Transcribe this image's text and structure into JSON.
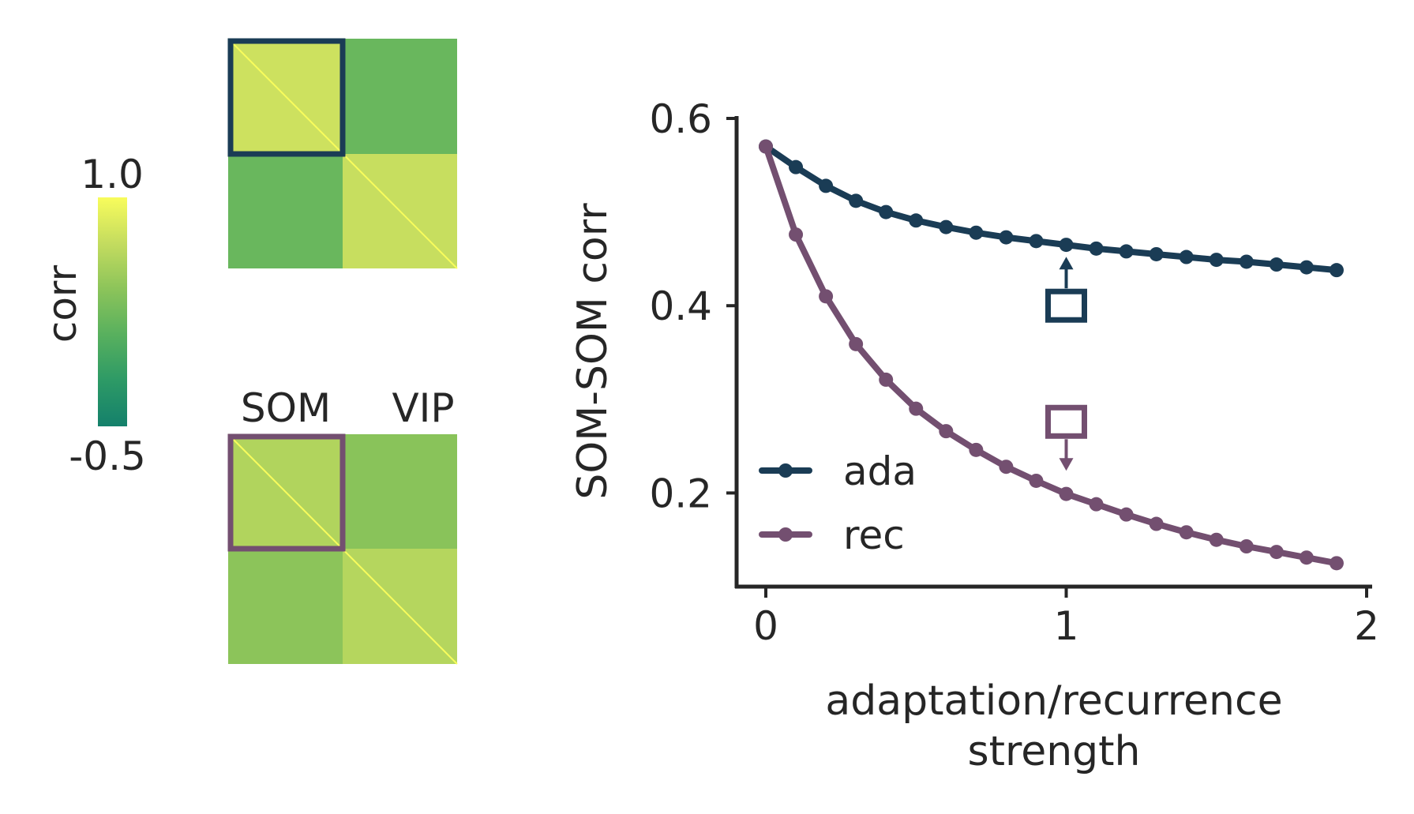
{
  "colors": {
    "ada": "#1a3c55",
    "rec": "#734f70",
    "text": "#262626",
    "cmap": [
      "#14806b",
      "#2d9a66",
      "#58b05e",
      "#8cc45a",
      "#c4dc5f",
      "#f8fc5c"
    ]
  },
  "colorbar": {
    "label": "corr",
    "max_label": "1.0",
    "min_label": "-0.5",
    "range": [
      -0.5,
      1.0
    ]
  },
  "matrices": {
    "column_labels": [
      "SOM",
      "VIP"
    ],
    "top": {
      "highlight": "SOM-SOM block",
      "highlight_color": "#1a3c55",
      "blocks": {
        "som_som": 0.75,
        "som_vip": 0.2,
        "vip_som": 0.2,
        "vip_vip": 0.72
      }
    },
    "bottom": {
      "highlight": "SOM-SOM block",
      "highlight_color": "#734f70",
      "blocks": {
        "som_som": 0.6,
        "som_vip": 0.38,
        "vip_som": 0.4,
        "vip_vip": 0.62
      }
    }
  },
  "chart_data": [
    {
      "type": "line",
      "title": "",
      "xlabel": "adaptation/recurrence\nstrength",
      "ylabel": "SOM-SOM corr",
      "xlim": [
        -0.1,
        2.0
      ],
      "ylim": [
        0.1,
        0.6
      ],
      "xticks": [
        0,
        1,
        2
      ],
      "xtick_labels": [
        "0",
        "1",
        "2"
      ],
      "yticks": [
        0.2,
        0.4,
        0.6
      ],
      "ytick_labels": [
        "0.2",
        "0.4",
        "0.6"
      ],
      "grid": false,
      "legend": "lower-left",
      "x": [
        0.0,
        0.1,
        0.2,
        0.3,
        0.4,
        0.5,
        0.6,
        0.7,
        0.8,
        0.9,
        1.0,
        1.1,
        1.2,
        1.3,
        1.4,
        1.5,
        1.6,
        1.7,
        1.8,
        1.9
      ],
      "series": [
        {
          "name": "ada",
          "color": "#1a3c55",
          "values": [
            0.57,
            0.548,
            0.528,
            0.512,
            0.5,
            0.491,
            0.484,
            0.478,
            0.473,
            0.469,
            0.465,
            0.461,
            0.458,
            0.455,
            0.452,
            0.449,
            0.447,
            0.444,
            0.441,
            0.438
          ]
        },
        {
          "name": "rec",
          "color": "#734f70",
          "values": [
            0.57,
            0.476,
            0.41,
            0.359,
            0.321,
            0.29,
            0.266,
            0.246,
            0.228,
            0.213,
            0.199,
            0.188,
            0.177,
            0.167,
            0.158,
            0.15,
            0.143,
            0.137,
            0.131,
            0.125
          ]
        }
      ],
      "annotations": [
        {
          "series": "ada",
          "marker": "open-square",
          "x": 1.0,
          "y": 0.4,
          "arrow": "up"
        },
        {
          "series": "rec",
          "marker": "open-square",
          "x": 1.0,
          "y": 0.276,
          "arrow": "down"
        }
      ]
    }
  ]
}
